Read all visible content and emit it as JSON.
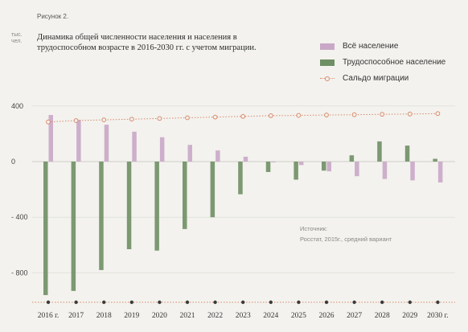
{
  "figure_label": "Рисунок 2.",
  "unit_label": "тыс. чел.",
  "title": "Динамика общей численности населения и населения в трудоспособном возрасте в 2016-2030 гг. с учетом миграции.",
  "legend": [
    {
      "key": "total",
      "label": "Всё население",
      "color": "#c9a7c6"
    },
    {
      "key": "working",
      "label": "Трудоспособное население",
      "color": "#6f8f64"
    },
    {
      "key": "migration",
      "label": "Сальдо миграции",
      "color": "#d98a6b"
    }
  ],
  "source": {
    "heading": "Источник:",
    "text": "Росстат, 2015г., средний вариант"
  },
  "chart_data": {
    "type": "bar",
    "categories": [
      "2016 г.",
      "2017",
      "2018",
      "2019",
      "2020",
      "2021",
      "2022",
      "2023",
      "2024",
      "2025",
      "2026",
      "2027",
      "2028",
      "2029",
      "2030 г."
    ],
    "series": [
      {
        "name": "Всё население",
        "type": "bar",
        "color": "#c9a7c6",
        "values": [
          335,
          300,
          265,
          215,
          175,
          120,
          80,
          35,
          -5,
          -25,
          -70,
          -105,
          -125,
          -135,
          -150
        ]
      },
      {
        "name": "Трудоспособное население",
        "type": "bar",
        "color": "#6f8f64",
        "values": [
          -960,
          -930,
          -780,
          -630,
          -640,
          -485,
          -400,
          -235,
          -75,
          -130,
          -65,
          45,
          145,
          115,
          20
        ]
      },
      {
        "name": "Сальдо миграции",
        "type": "line",
        "color": "#d98a6b",
        "values": [
          285,
          295,
          300,
          305,
          310,
          315,
          320,
          325,
          330,
          332,
          335,
          337,
          340,
          342,
          345
        ]
      }
    ],
    "ylim": [
      -1000,
      450
    ],
    "yticks": [
      400,
      0,
      -400,
      -800
    ],
    "ytick_labels": [
      "400",
      "0",
      "- 400",
      "- 800"
    ],
    "grid": true
  }
}
